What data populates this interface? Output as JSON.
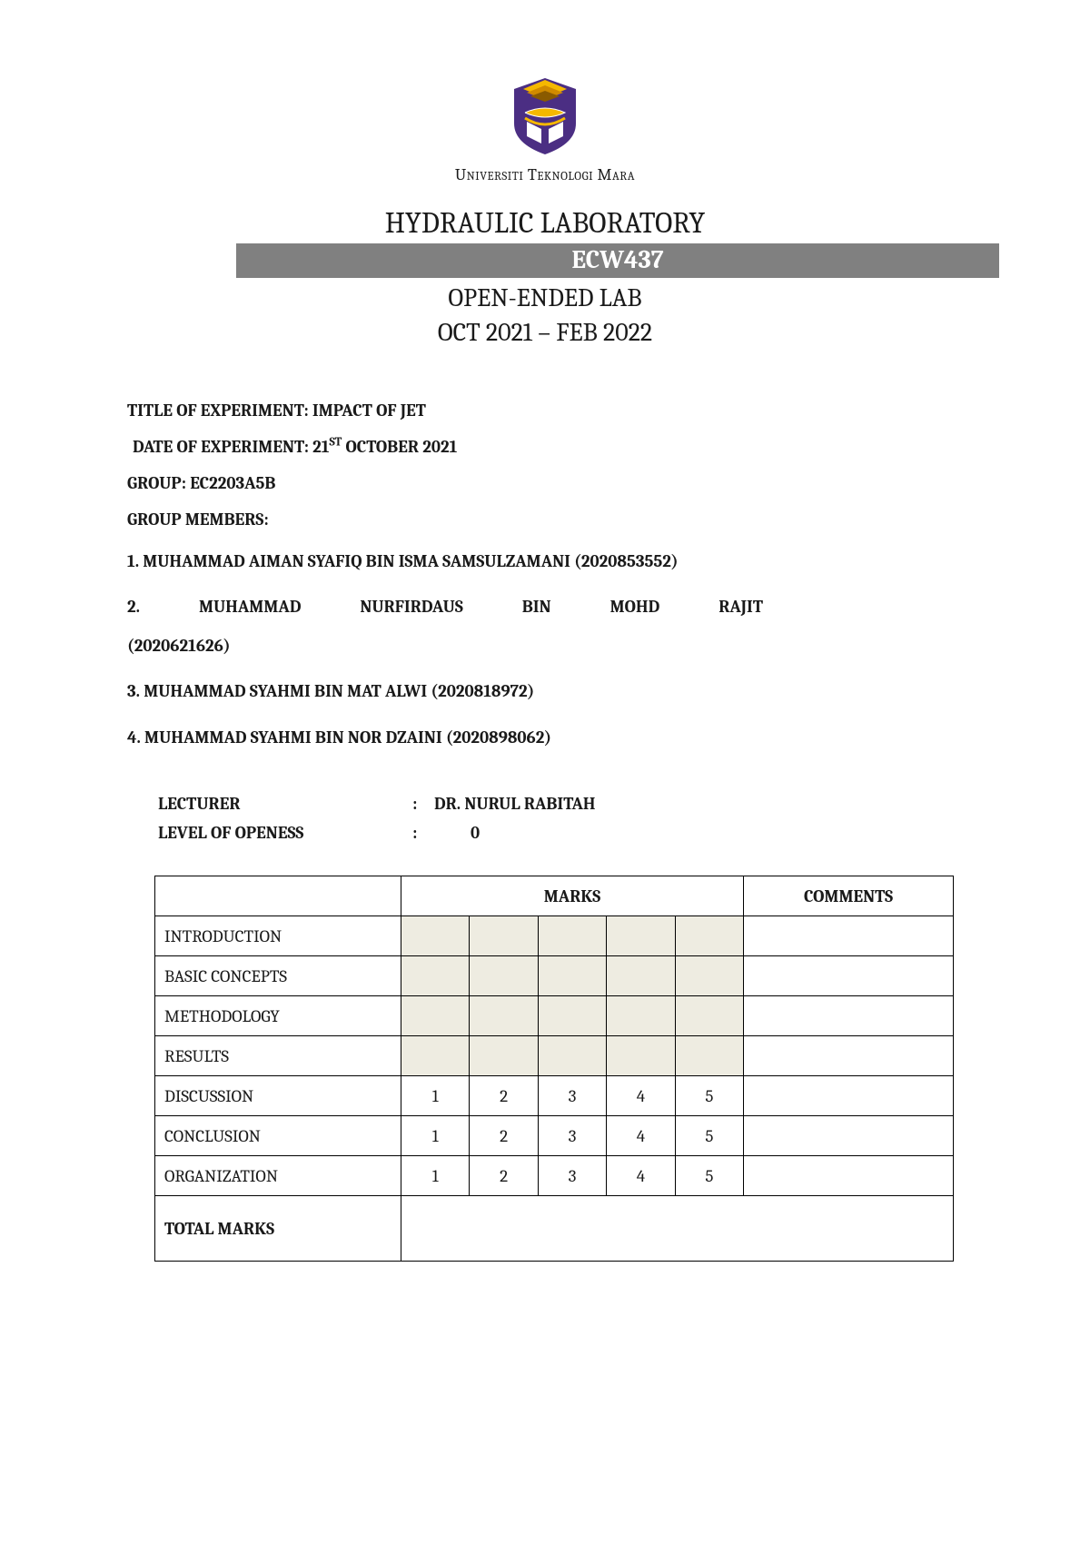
{
  "university": "Universiti Teknologi Mara",
  "header": {
    "lab": "HYDRAULIC LABORATORY",
    "course": "ECW437",
    "sub1": "OPEN-ENDED LAB",
    "sub2": "OCT 2021 – FEB 2022"
  },
  "labels": {
    "title": "TITLE OF EXPERIMENT: ",
    "date": "DATE OF EXPERIMENT: ",
    "group": "GROUP: ",
    "members": "GROUP MEMBERS:",
    "lecturer": "LECTURER",
    "openess": "LEVEL OF OPENESS"
  },
  "experiment": {
    "title": "IMPACT OF JET",
    "date_prefix": "21",
    "date_sup": "ST",
    "date_suffix": " OCTOBER 2021",
    "group": "EC2203A5B"
  },
  "members": {
    "m1": "1. MUHAMMAD AIMAN SYAFIQ BIN ISMA SAMSULZAMANI (2020853552)",
    "m2_parts": {
      "a": "2.",
      "b": "MUHAMMAD",
      "c": "NURFIRDAUS",
      "d": "BIN",
      "e": "MOHD",
      "f": "RAJIT"
    },
    "m2_id": "(2020621626)",
    "m3": "3. MUHAMMAD SYAHMI BIN MAT ALWI (2020818972)",
    "m4": "4. MUHAMMAD SYAHMI BIN NOR DZAINI (2020898062)"
  },
  "info": {
    "lecturer": "DR. NURUL RABITAH",
    "openess": "0",
    "colon": ":"
  },
  "table": {
    "marks_header": "MARKS",
    "comments_header": "COMMENTS",
    "rows_shaded": [
      "INTRODUCTION",
      "BASIC CONCEPTS",
      "METHODOLOGY",
      "RESULTS"
    ],
    "rows_scored": [
      "DISCUSSION",
      "CONCLUSION",
      "ORGANIZATION"
    ],
    "scores": [
      "1",
      "2",
      "3",
      "4",
      "5"
    ],
    "total": "TOTAL MARKS"
  },
  "logo_colors": {
    "shield": "#4b2e83",
    "book_top": "#f5b800",
    "book_mid": "#d08a00",
    "accent": "#ffffff"
  }
}
